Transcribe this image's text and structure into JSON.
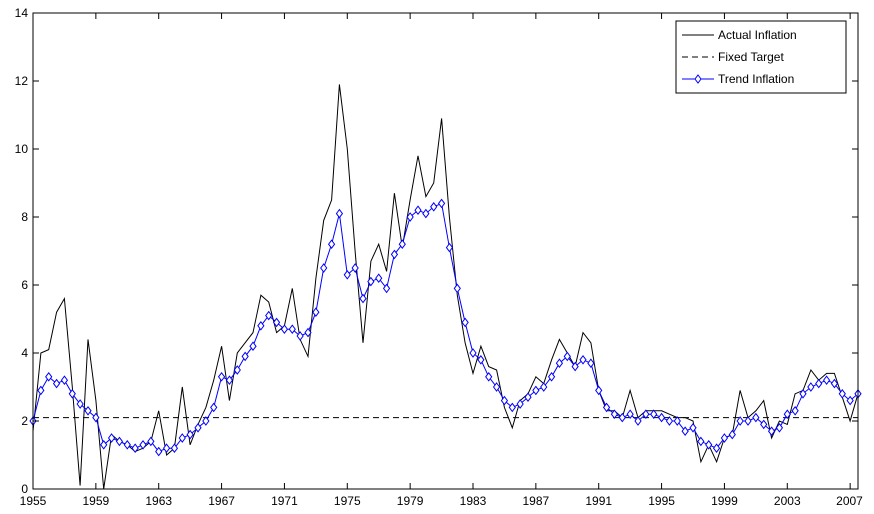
{
  "chart_data": {
    "type": "line",
    "title": "",
    "xlabel": "",
    "ylabel": "",
    "xlim": [
      1955,
      2007.5
    ],
    "ylim": [
      0,
      14
    ],
    "grid": false,
    "legend_position": "top-right",
    "x_tick_labels": [
      "1955",
      "1959",
      "1963",
      "1967",
      "1971",
      "1975",
      "1979",
      "1983",
      "1987",
      "1991",
      "1995",
      "1999",
      "2003",
      "2007"
    ],
    "y_tick_labels": [
      "0",
      "2",
      "4",
      "6",
      "8",
      "10",
      "12",
      "14"
    ],
    "series": [
      {
        "name": "Actual Inflation",
        "style": "solid",
        "color": "#000000",
        "x": [
          1955.0,
          1955.5,
          1956.0,
          1956.5,
          1957.0,
          1957.5,
          1958.0,
          1958.5,
          1959.0,
          1959.5,
          1960.0,
          1960.5,
          1961.0,
          1961.5,
          1962.0,
          1962.5,
          1963.0,
          1963.5,
          1964.0,
          1964.5,
          1965.0,
          1965.5,
          1966.0,
          1966.5,
          1967.0,
          1967.5,
          1968.0,
          1968.5,
          1969.0,
          1969.5,
          1970.0,
          1970.5,
          1971.0,
          1971.5,
          1972.0,
          1972.5,
          1973.0,
          1973.5,
          1974.0,
          1974.5,
          1975.0,
          1975.5,
          1976.0,
          1976.5,
          1977.0,
          1977.5,
          1978.0,
          1978.5,
          1979.0,
          1979.5,
          1980.0,
          1980.5,
          1981.0,
          1981.5,
          1982.0,
          1982.5,
          1983.0,
          1983.5,
          1984.0,
          1984.5,
          1985.0,
          1985.5,
          1986.0,
          1986.5,
          1987.0,
          1987.5,
          1988.0,
          1988.5,
          1989.0,
          1989.5,
          1990.0,
          1990.5,
          1991.0,
          1991.5,
          1992.0,
          1992.5,
          1993.0,
          1993.5,
          1994.0,
          1994.5,
          1995.0,
          1995.5,
          1996.0,
          1996.5,
          1997.0,
          1997.5,
          1998.0,
          1998.5,
          1999.0,
          1999.5,
          2000.0,
          2000.5,
          2001.0,
          2001.5,
          2002.0,
          2002.5,
          2003.0,
          2003.5,
          2004.0,
          2004.5,
          2005.0,
          2005.5,
          2006.0,
          2006.5,
          2007.0,
          2007.5
        ],
        "values": [
          1.7,
          4.0,
          4.1,
          5.2,
          5.6,
          3.0,
          0.1,
          4.4,
          2.6,
          0.0,
          1.6,
          1.4,
          1.3,
          1.1,
          1.2,
          1.4,
          2.3,
          1.0,
          1.2,
          3.0,
          1.3,
          1.9,
          2.4,
          3.2,
          4.2,
          2.6,
          4.0,
          4.3,
          4.6,
          5.7,
          5.5,
          4.6,
          4.8,
          5.9,
          4.4,
          3.9,
          6.2,
          7.9,
          8.5,
          11.9,
          10.0,
          7.0,
          4.3,
          6.7,
          7.2,
          6.4,
          8.7,
          7.1,
          8.5,
          9.8,
          8.6,
          9.0,
          10.9,
          8.0,
          5.7,
          4.3,
          3.4,
          4.2,
          3.6,
          3.5,
          2.4,
          1.8,
          2.6,
          2.8,
          3.3,
          3.1,
          3.8,
          4.4,
          4.0,
          3.6,
          4.6,
          4.3,
          2.9,
          2.3,
          2.3,
          2.1,
          2.9,
          2.1,
          2.3,
          2.3,
          2.3,
          2.2,
          2.1,
          2.1,
          2.0,
          0.8,
          1.3,
          0.8,
          1.5,
          1.6,
          2.9,
          2.1,
          2.3,
          2.6,
          1.5,
          2.0,
          1.9,
          2.8,
          2.9,
          3.5,
          3.2,
          3.4,
          3.4,
          2.7,
          2.0,
          2.8
        ]
      },
      {
        "name": "Fixed Target",
        "style": "dashed",
        "color": "#000000",
        "x": [
          1955.0,
          2007.5
        ],
        "values": [
          2.1,
          2.1
        ]
      },
      {
        "name": "Trend Inflation",
        "style": "solid-diamond",
        "color": "#0000ff",
        "x": [
          1955.0,
          1955.5,
          1956.0,
          1956.5,
          1957.0,
          1957.5,
          1958.0,
          1958.5,
          1959.0,
          1959.5,
          1960.0,
          1960.5,
          1961.0,
          1961.5,
          1962.0,
          1962.5,
          1963.0,
          1963.5,
          1964.0,
          1964.5,
          1965.0,
          1965.5,
          1966.0,
          1966.5,
          1967.0,
          1967.5,
          1968.0,
          1968.5,
          1969.0,
          1969.5,
          1970.0,
          1970.5,
          1971.0,
          1971.5,
          1972.0,
          1972.5,
          1973.0,
          1973.5,
          1974.0,
          1974.5,
          1975.0,
          1975.5,
          1976.0,
          1976.5,
          1977.0,
          1977.5,
          1978.0,
          1978.5,
          1979.0,
          1979.5,
          1980.0,
          1980.5,
          1981.0,
          1981.5,
          1982.0,
          1982.5,
          1983.0,
          1983.5,
          1984.0,
          1984.5,
          1985.0,
          1985.5,
          1986.0,
          1986.5,
          1987.0,
          1987.5,
          1988.0,
          1988.5,
          1989.0,
          1989.5,
          1990.0,
          1990.5,
          1991.0,
          1991.5,
          1992.0,
          1992.5,
          1993.0,
          1993.5,
          1994.0,
          1994.5,
          1995.0,
          1995.5,
          1996.0,
          1996.5,
          1997.0,
          1997.5,
          1998.0,
          1998.5,
          1999.0,
          1999.5,
          2000.0,
          2000.5,
          2001.0,
          2001.5,
          2002.0,
          2002.5,
          2003.0,
          2003.5,
          2004.0,
          2004.5,
          2005.0,
          2005.5,
          2006.0,
          2006.5,
          2007.0,
          2007.5
        ],
        "values": [
          2.0,
          2.9,
          3.3,
          3.1,
          3.2,
          2.8,
          2.5,
          2.3,
          2.1,
          1.3,
          1.5,
          1.4,
          1.3,
          1.2,
          1.3,
          1.4,
          1.1,
          1.2,
          1.2,
          1.5,
          1.6,
          1.8,
          2.0,
          2.4,
          3.3,
          3.2,
          3.5,
          3.9,
          4.2,
          4.8,
          5.1,
          4.9,
          4.7,
          4.7,
          4.5,
          4.6,
          5.2,
          6.5,
          7.2,
          8.1,
          6.3,
          6.5,
          5.6,
          6.1,
          6.2,
          5.9,
          6.9,
          7.2,
          8.0,
          8.2,
          8.1,
          8.3,
          8.4,
          7.1,
          5.9,
          4.9,
          4.0,
          3.8,
          3.3,
          3.0,
          2.6,
          2.4,
          2.5,
          2.7,
          2.9,
          3.0,
          3.3,
          3.7,
          3.9,
          3.6,
          3.8,
          3.7,
          2.9,
          2.4,
          2.2,
          2.1,
          2.2,
          2.0,
          2.2,
          2.2,
          2.1,
          2.0,
          2.0,
          1.7,
          1.8,
          1.4,
          1.3,
          1.2,
          1.5,
          1.6,
          2.0,
          2.0,
          2.1,
          1.9,
          1.7,
          1.8,
          2.2,
          2.3,
          2.8,
          3.0,
          3.1,
          3.2,
          3.1,
          2.8,
          2.6,
          2.8
        ]
      }
    ]
  }
}
